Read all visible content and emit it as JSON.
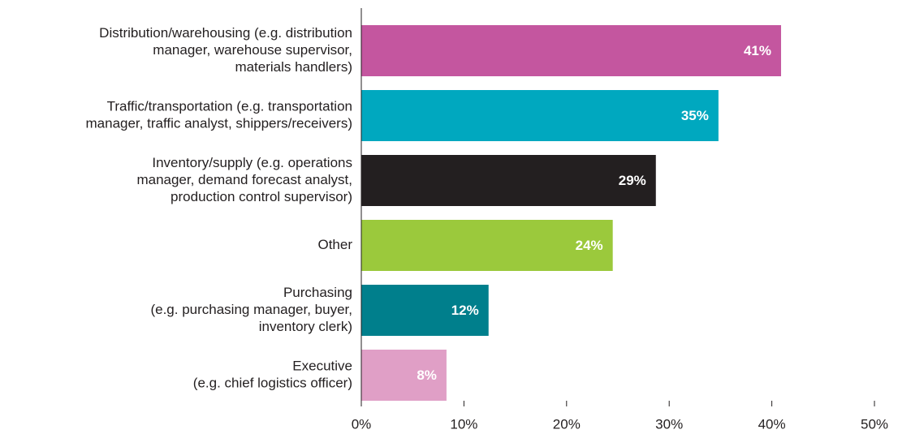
{
  "chart_data": {
    "type": "bar",
    "orientation": "horizontal",
    "categories": [
      [
        "Distribution/warehousing (e.g. distribution",
        "manager, warehouse supervisor,",
        "materials handlers)"
      ],
      [
        "Traffic/transportation (e.g. transportation",
        "manager, traffic analyst, shippers/receivers)"
      ],
      [
        "Inventory/supply (e.g. operations",
        "manager, demand forecast analyst,",
        "production control supervisor)"
      ],
      [
        "Other"
      ],
      [
        "Purchasing",
        "(e.g. purchasing manager, buyer,",
        "inventory clerk)"
      ],
      [
        "Executive",
        "(e.g. chief logistics officer)"
      ]
    ],
    "values": [
      40.9,
      34.8,
      28.7,
      24.5,
      12.4,
      8.3
    ],
    "value_labels": [
      "41%",
      "35%",
      "29%",
      "24%",
      "12%",
      "8%"
    ],
    "colors": [
      "#c4569f",
      "#00a8bf",
      "#231f20",
      "#9bc93c",
      "#007f8c",
      "#e09fc6"
    ],
    "xlim": [
      0,
      50
    ],
    "xticks": [
      {
        "value": 0,
        "label": "0%"
      },
      {
        "value": 10,
        "label": "10%"
      },
      {
        "value": 20,
        "label": "20%"
      },
      {
        "value": 30,
        "label": "30%"
      },
      {
        "value": 40,
        "label": "40%"
      },
      {
        "value": 50,
        "label": "50%"
      }
    ]
  }
}
